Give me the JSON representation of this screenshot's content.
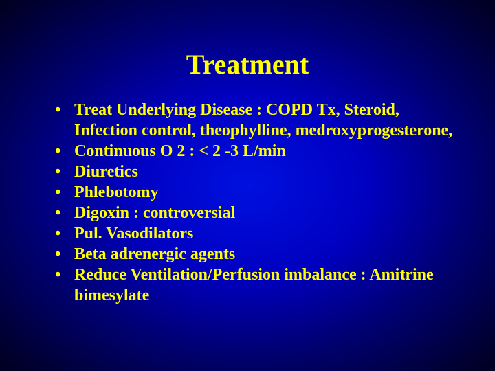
{
  "slide": {
    "title": "Treatment",
    "title_color": "#ffff00",
    "title_fontsize": 40,
    "body_color": "#ffff00",
    "body_fontsize": 24,
    "font_family": "Times New Roman",
    "background_gradient": {
      "type": "radial",
      "center_color": "#0010e0",
      "mid_color": "#000070",
      "edge_color": "#000020"
    },
    "bullets": [
      "Treat Underlying Disease : COPD Tx, Steroid, Infection control, theophylline, medroxyprogesterone,",
      "Continuous O 2 : < 2 -3 L/min",
      "Diuretics",
      "Phlebotomy",
      "Digoxin : controversial",
      "Pul. Vasodilators",
      "Beta adrenergic agents",
      "Reduce Ventilation/Perfusion imbalance : Amitrine bimesylate"
    ]
  }
}
